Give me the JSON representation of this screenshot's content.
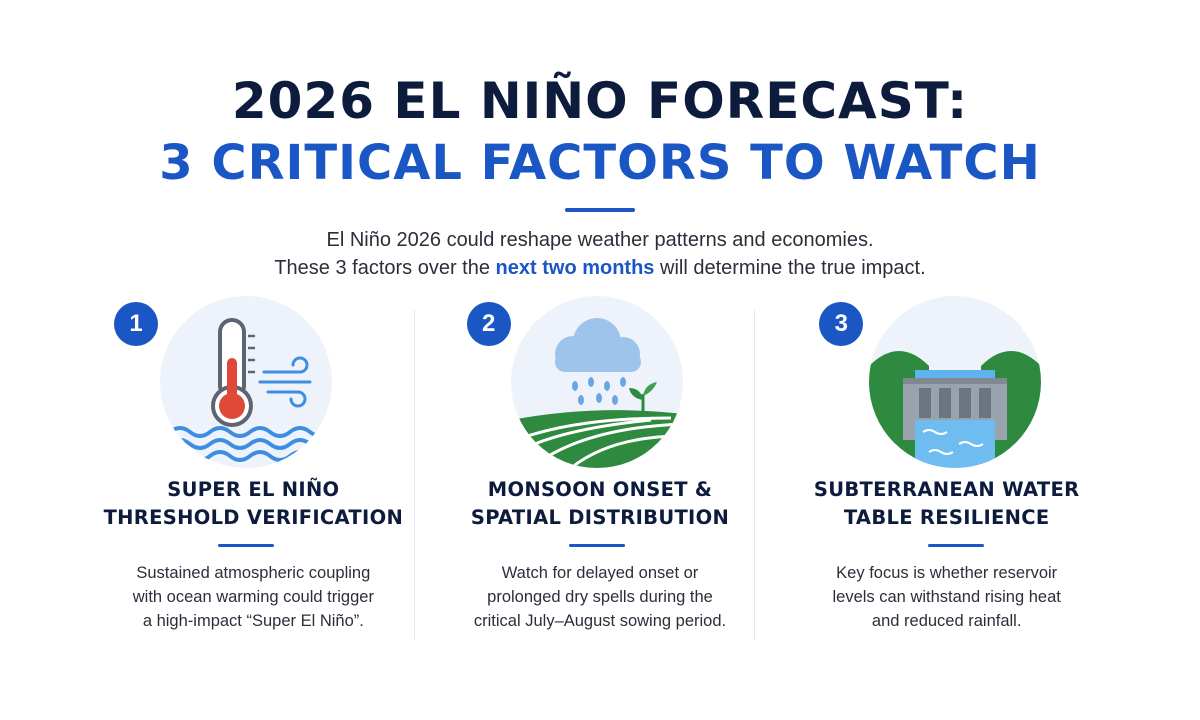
{
  "header": {
    "title_line1": "2026 EL NIÑO FORECAST:",
    "title_line2": "3 CRITICAL FACTORS TO WATCH"
  },
  "intro": {
    "line1": "El Niño 2026 could reshape weather patterns and economies.",
    "line2_before": "These 3 factors over the ",
    "line2_highlight": "next two months",
    "line2_after": " will determine the true impact."
  },
  "factors": [
    {
      "number": "1",
      "icon": "thermometer-ocean-icon",
      "title_line1": "SUPER EL NIÑO",
      "title_line2": "THRESHOLD VERIFICATION",
      "desc_line1": "Sustained atmospheric coupling",
      "desc_line2": "with ocean warming could trigger",
      "desc_line3": "a high-impact “Super El Niño”."
    },
    {
      "number": "2",
      "icon": "rain-cloud-field-icon",
      "title_line1": "MONSOON ONSET &",
      "title_line2": "SPATIAL DISTRIBUTION",
      "desc_line1": "Watch for delayed onset or",
      "desc_line2": "prolonged dry spells during the",
      "desc_line3": "critical July–August sowing period."
    },
    {
      "number": "3",
      "icon": "dam-reservoir-icon",
      "title_line1": "SUBTERRANEAN WATER",
      "title_line2": "TABLE RESILIENCE",
      "desc_line1": "Key focus is whether reservoir",
      "desc_line2": "levels can withstand rising heat",
      "desc_line3": "and reduced rainfall."
    }
  ],
  "colors": {
    "navy": "#0d1b3d",
    "accent_blue": "#1a56c4",
    "icon_bg": "#eef3fb",
    "thermo_red": "#e0483a",
    "water_blue": "#3d8ee0",
    "field_green": "#2e8a3e"
  }
}
